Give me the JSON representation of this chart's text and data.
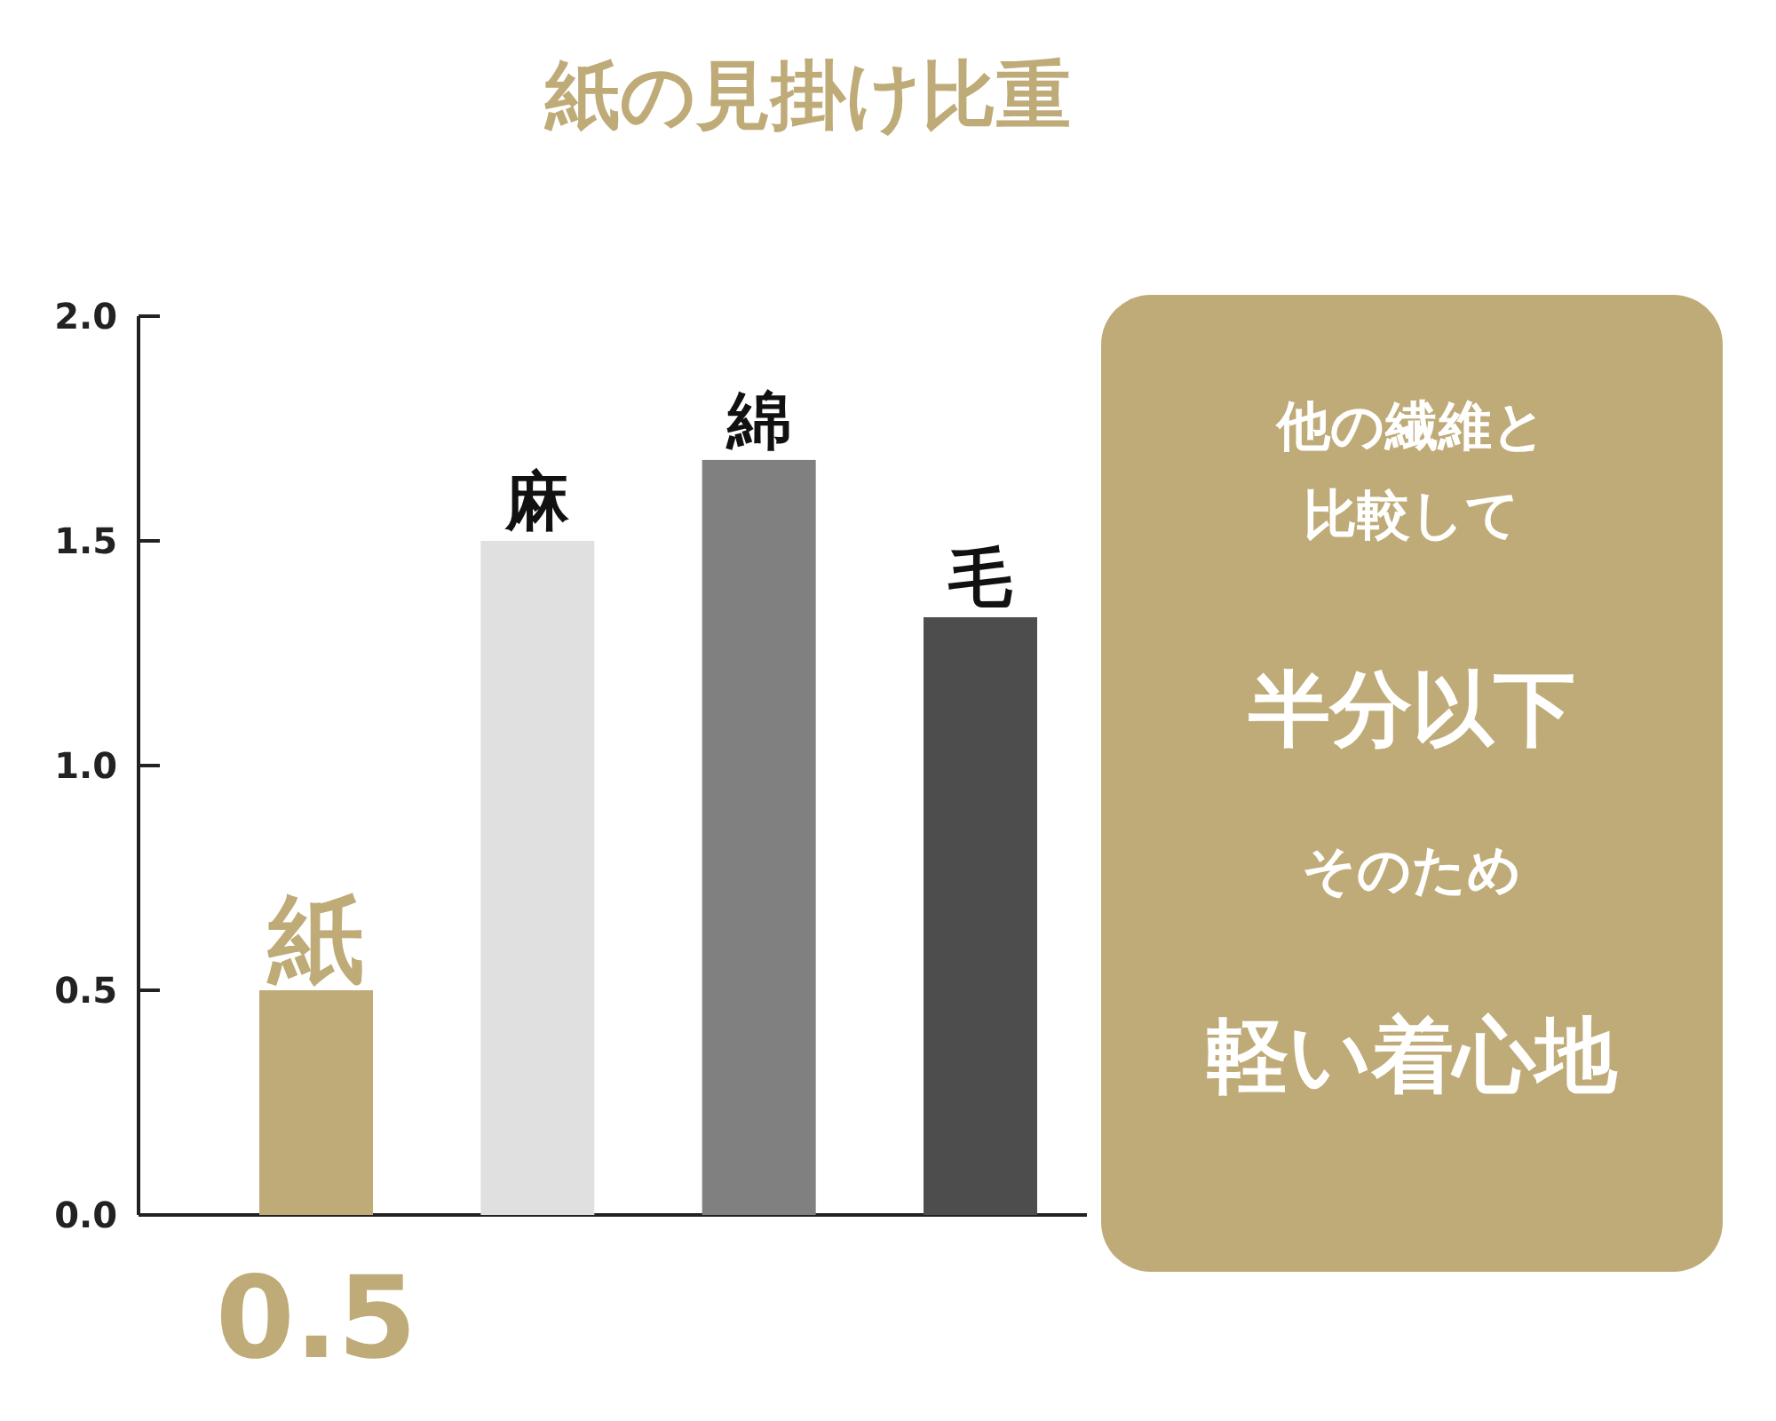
{
  "chart_data": {
    "type": "bar",
    "title": "紙の見掛け比重",
    "categories": [
      "紙",
      "麻",
      "綿",
      "毛"
    ],
    "values": [
      0.5,
      1.5,
      1.68,
      1.33
    ],
    "colors": [
      "#bfab78",
      "#e0e0e0",
      "#808080",
      "#4d4d4d"
    ],
    "value_labels": [
      "0.5",
      null,
      null,
      null
    ],
    "ylim": [
      0,
      2
    ],
    "yticks": [
      {
        "value": 0,
        "label": "0.0"
      },
      {
        "value": 0.5,
        "label": "0.5"
      },
      {
        "value": 1,
        "label": "1.0"
      },
      {
        "value": 1.5,
        "label": "1.5"
      },
      {
        "value": 2,
        "label": "2.0"
      }
    ],
    "annotations": [
      "他の繊維と",
      "比較して",
      "半分以下",
      "そのため",
      "軽い着心地"
    ]
  }
}
